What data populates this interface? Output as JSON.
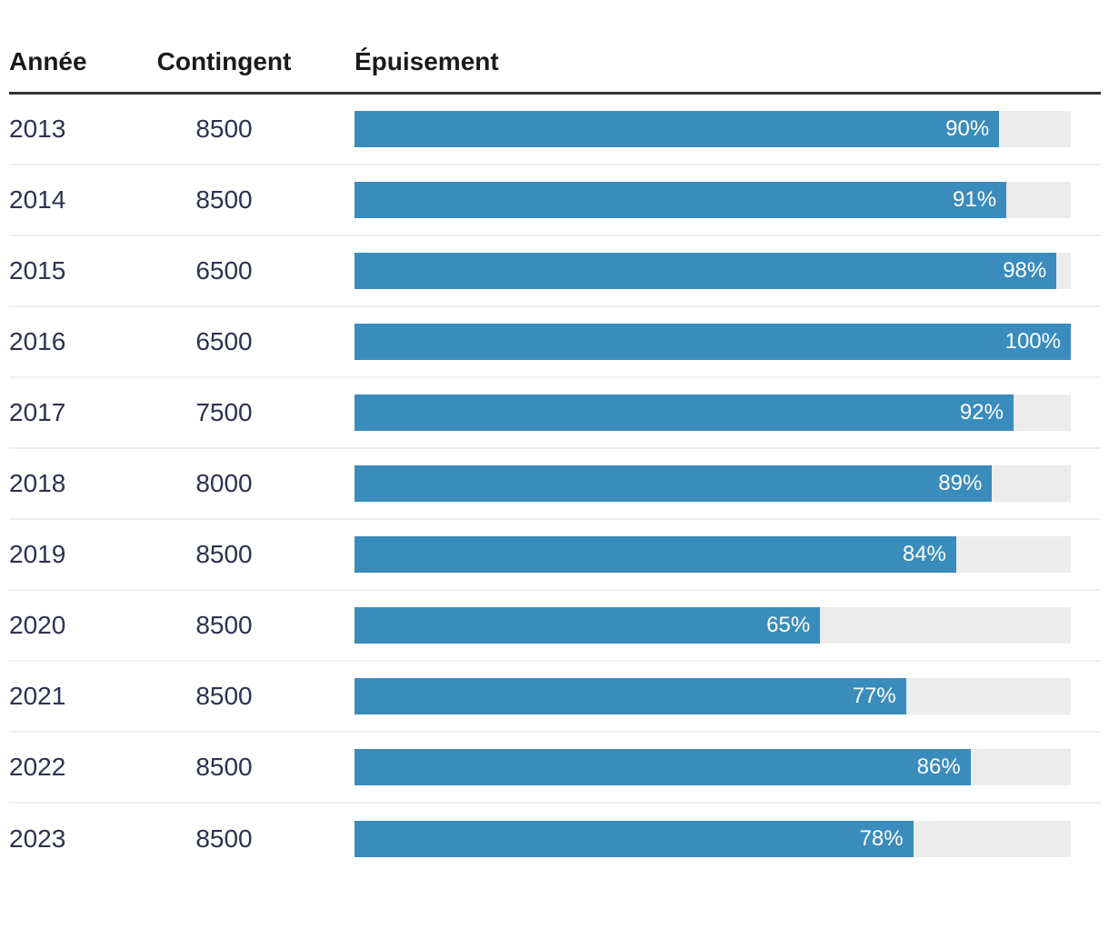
{
  "table": {
    "columns": [
      {
        "key": "annee",
        "label": "Année"
      },
      {
        "key": "contingent",
        "label": "Contingent"
      },
      {
        "key": "epuisement",
        "label": "Épuisement"
      }
    ],
    "rows": [
      {
        "annee": "2013",
        "contingent": "8500",
        "epuisement_pct": 90,
        "epuisement_label": "90%"
      },
      {
        "annee": "2014",
        "contingent": "8500",
        "epuisement_pct": 91,
        "epuisement_label": "91%"
      },
      {
        "annee": "2015",
        "contingent": "6500",
        "epuisement_pct": 98,
        "epuisement_label": "98%"
      },
      {
        "annee": "2016",
        "contingent": "6500",
        "epuisement_pct": 100,
        "epuisement_label": "100%"
      },
      {
        "annee": "2017",
        "contingent": "7500",
        "epuisement_pct": 92,
        "epuisement_label": "92%"
      },
      {
        "annee": "2018",
        "contingent": "8000",
        "epuisement_pct": 89,
        "epuisement_label": "89%"
      },
      {
        "annee": "2019",
        "contingent": "8500",
        "epuisement_pct": 84,
        "epuisement_label": "84%"
      },
      {
        "annee": "2020",
        "contingent": "8500",
        "epuisement_pct": 65,
        "epuisement_label": "65%"
      },
      {
        "annee": "2021",
        "contingent": "8500",
        "epuisement_pct": 77,
        "epuisement_label": "77%"
      },
      {
        "annee": "2022",
        "contingent": "8500",
        "epuisement_pct": 86,
        "epuisement_label": "86%"
      },
      {
        "annee": "2023",
        "contingent": "8500",
        "epuisement_pct": 78,
        "epuisement_label": "78%"
      }
    ]
  },
  "colors": {
    "bar_fill": "#3a8cbd",
    "bar_track": "#ececec",
    "percent_text": "#ffffff",
    "value_text": "#2e3151",
    "header_text": "#1a1a1a",
    "header_rule": "#333333",
    "row_divider": "#eeeeee"
  },
  "chart_data": {
    "type": "table",
    "title": "",
    "columns": [
      "Année",
      "Contingent",
      "Épuisement"
    ],
    "rows": [
      [
        2013,
        8500,
        "90%"
      ],
      [
        2014,
        8500,
        "91%"
      ],
      [
        2015,
        6500,
        "98%"
      ],
      [
        2016,
        6500,
        "100%"
      ],
      [
        2017,
        7500,
        "92%"
      ],
      [
        2018,
        8000,
        "89%"
      ],
      [
        2019,
        8500,
        "84%"
      ],
      [
        2020,
        8500,
        "65%"
      ],
      [
        2021,
        8500,
        "77%"
      ],
      [
        2022,
        8500,
        "86%"
      ],
      [
        2023,
        8500,
        "78%"
      ]
    ],
    "embedded_bars": {
      "column": "Épuisement",
      "type": "bar",
      "orientation": "horizontal",
      "categories": [
        2013,
        2014,
        2015,
        2016,
        2017,
        2018,
        2019,
        2020,
        2021,
        2022,
        2023
      ],
      "values": [
        90,
        91,
        98,
        100,
        92,
        89,
        84,
        65,
        77,
        86,
        78
      ],
      "unit": "%",
      "value_range": [
        0,
        100
      ],
      "labels_inside_bar": true
    }
  }
}
